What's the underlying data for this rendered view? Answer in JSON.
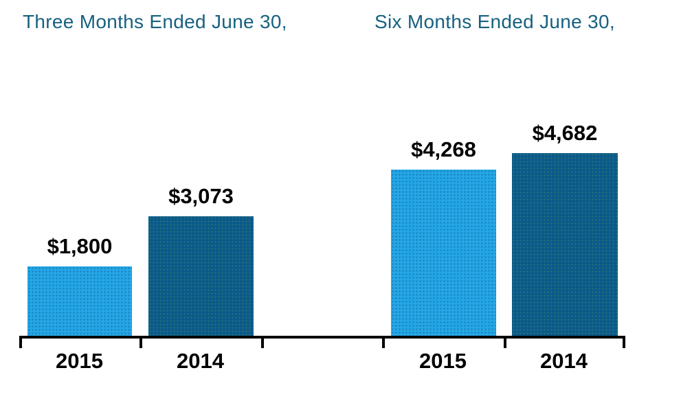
{
  "colors": {
    "title_text": "#176180",
    "bar_2015": "#25A6E5",
    "bar_2014": "#0C5A89",
    "axis": "#000000",
    "data_label": "#000000"
  },
  "chart_data": [
    {
      "type": "bar",
      "title": "Three Months Ended June 30,",
      "categories": [
        "2015",
        "2014"
      ],
      "values": [
        1800,
        3073
      ],
      "value_labels": [
        "$1,800",
        "$3,073"
      ],
      "series_colors": [
        "#25A6E5",
        "#0C5A89"
      ],
      "xlabel": "",
      "ylabel": "",
      "ylim": [
        0,
        5000
      ],
      "grid": false,
      "legend": "none",
      "data_labels_position": "above-bars"
    },
    {
      "type": "bar",
      "title": "Six Months Ended June 30,",
      "categories": [
        "2015",
        "2014"
      ],
      "values": [
        4268,
        4682
      ],
      "value_labels": [
        "$4,268",
        "$4,682"
      ],
      "series_colors": [
        "#25A6E5",
        "#0C5A89"
      ],
      "xlabel": "",
      "ylabel": "",
      "ylim": [
        0,
        5000
      ],
      "grid": false,
      "legend": "none",
      "data_labels_position": "above-bars"
    }
  ]
}
